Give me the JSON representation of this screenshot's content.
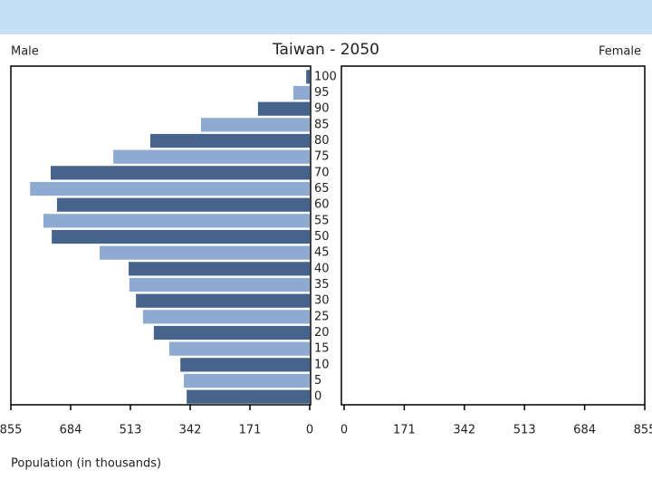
{
  "chart_data": {
    "type": "pyramid",
    "title": "Taiwan - 2050",
    "left_label": "Male",
    "right_label": "Female",
    "x_label": "Population (in thousands)",
    "categories": [
      "0",
      "5",
      "10",
      "15",
      "20",
      "25",
      "30",
      "35",
      "40",
      "45",
      "50",
      "55",
      "60",
      "65",
      "70",
      "75",
      "80",
      "85",
      "90",
      "95",
      "100"
    ],
    "values": [
      352,
      360,
      370,
      402,
      446,
      477,
      497,
      516,
      518,
      601,
      738,
      762,
      723,
      800,
      741,
      562,
      456,
      311,
      148,
      47,
      10
    ],
    "colors": [
      "#46638c",
      "#8eaad0"
    ],
    "xlim": [
      0,
      855
    ],
    "xticks": [
      0,
      171,
      342,
      513,
      684,
      855
    ]
  }
}
